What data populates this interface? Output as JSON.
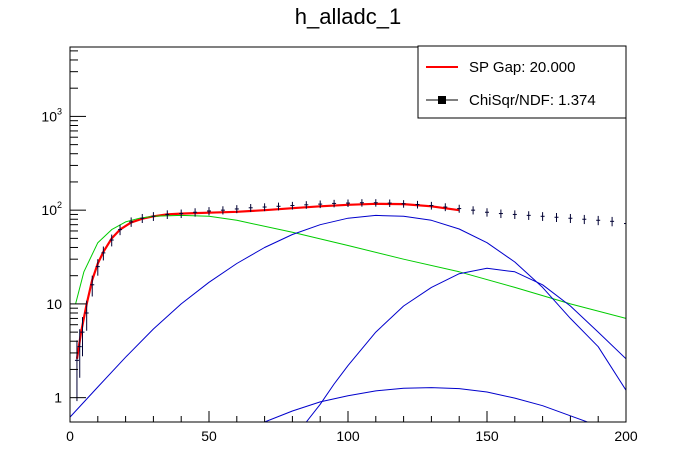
{
  "chart_data": {
    "type": "scatter",
    "title": "h_alladc_1",
    "xlabel": "",
    "ylabel": "",
    "xlim": [
      0,
      200
    ],
    "ylim": [
      0.55,
      5500
    ],
    "yscale": "log",
    "x_ticks": [
      "0",
      "50",
      "100",
      "150",
      "200"
    ],
    "y_ticks": [
      {
        "base": "1",
        "exp": ""
      },
      {
        "base": "10",
        "exp": ""
      },
      {
        "base": "10",
        "exp": "2"
      },
      {
        "base": "10",
        "exp": "3"
      }
    ],
    "legend": {
      "position": "top-right",
      "entries": [
        {
          "label": "SP Gap: 20.000",
          "color": "#ff0000",
          "marker": "line"
        },
        {
          "label": "ChiSqr/NDF: 1.374",
          "color": "#000000",
          "marker": "square-errorbar"
        }
      ]
    },
    "histogram": {
      "name": "data",
      "color": "#000033",
      "x": [
        2.5,
        3.5,
        4.5,
        6,
        8,
        10,
        12,
        15,
        18,
        22,
        26,
        30,
        35,
        40,
        45,
        50,
        55,
        60,
        65,
        70,
        75,
        80,
        85,
        90,
        95,
        100,
        105,
        110,
        115,
        120,
        125,
        130,
        135,
        140,
        145,
        150,
        155,
        160,
        165,
        170,
        175,
        180,
        185,
        190,
        195,
        200
      ],
      "y": [
        2.5,
        3.5,
        5,
        8,
        16,
        25,
        35,
        48,
        62,
        75,
        82,
        86,
        90,
        92,
        95,
        98,
        100,
        103,
        106,
        108,
        110,
        112,
        114,
        116,
        118,
        119,
        120,
        120,
        119,
        117,
        115,
        112,
        108,
        104,
        100,
        95,
        92,
        90,
        88,
        86,
        84,
        82,
        80,
        78,
        76,
        72
      ]
    },
    "series": [
      {
        "name": "",
        "color": "#ff0000",
        "x": [
          2.5,
          4,
          6,
          8,
          10,
          12,
          15,
          18,
          22,
          26,
          30,
          35,
          40,
          45,
          50,
          60,
          70,
          80,
          90,
          100,
          110,
          120,
          130,
          140
        ],
        "y": [
          2.6,
          5,
          10,
          18,
          27,
          36,
          50,
          62,
          74,
          81,
          86,
          90,
          92,
          93,
          94,
          96,
          100,
          105,
          110,
          114,
          117,
          116,
          110,
          100
        ]
      },
      {
        "name": "",
        "color": "#00cc00",
        "x": [
          2,
          5,
          10,
          15,
          20,
          25,
          30,
          40,
          50,
          60,
          80,
          100,
          120,
          140,
          160,
          180,
          200
        ],
        "y": [
          10,
          22,
          45,
          62,
          75,
          82,
          86,
          88,
          86,
          78,
          58,
          42,
          30,
          22,
          15,
          10,
          7
        ]
      },
      {
        "name": "",
        "color": "#0000cc",
        "x": [
          0,
          10,
          20,
          30,
          40,
          50,
          60,
          70,
          80,
          90,
          100,
          110,
          120,
          130,
          140,
          150,
          160,
          170,
          180,
          190,
          200
        ],
        "y": [
          0.62,
          1.3,
          2.7,
          5.4,
          10,
          17,
          27,
          40,
          55,
          70,
          82,
          88,
          86,
          78,
          63,
          45,
          28,
          15,
          7,
          3.5,
          1.2
        ]
      },
      {
        "name": "",
        "color": "#0000cc",
        "x": [
          85,
          90,
          95,
          100,
          110,
          120,
          130,
          140,
          150,
          160,
          170,
          180,
          190,
          200
        ],
        "y": [
          0.55,
          0.85,
          1.4,
          2.2,
          5,
          9.5,
          15,
          21,
          24,
          22,
          16,
          9.5,
          5,
          2.6
        ]
      },
      {
        "name": "",
        "color": "#0000cc",
        "x": [
          70,
          80,
          90,
          100,
          110,
          120,
          130,
          140,
          150,
          160,
          170,
          180,
          190
        ],
        "y": [
          0.55,
          0.72,
          0.9,
          1.05,
          1.18,
          1.26,
          1.28,
          1.25,
          1.15,
          0.99,
          0.82,
          0.64,
          0.5
        ]
      }
    ]
  }
}
